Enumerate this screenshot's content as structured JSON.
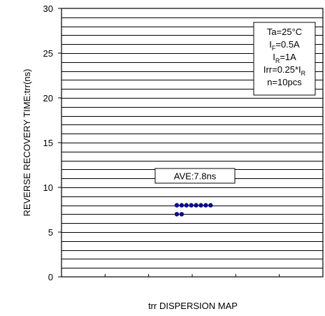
{
  "chart_data": {
    "type": "scatter",
    "title": "",
    "xlabel": "trr DISPERSION MAP",
    "ylabel": "REVERSE RECOVERY TIME:trr(ns)",
    "ylim": [
      0,
      30
    ],
    "yticks": [
      "0",
      "5",
      "10",
      "15",
      "20",
      "25",
      "30"
    ],
    "ygrid_step": 1,
    "grid": true,
    "series": [
      {
        "points": [
          {
            "x": 1,
            "y": 8
          },
          {
            "x": 2,
            "y": 8
          },
          {
            "x": 3,
            "y": 8
          },
          {
            "x": 4,
            "y": 8
          },
          {
            "x": 5,
            "y": 8
          },
          {
            "x": 6,
            "y": 8
          },
          {
            "x": 7,
            "y": 8
          },
          {
            "x": 8,
            "y": 8
          },
          {
            "x": 1,
            "y": 7
          },
          {
            "x": 2,
            "y": 7
          }
        ]
      }
    ],
    "annotations": {
      "average": "AVE:7.8ns",
      "conditions": [
        {
          "main": "Ta=25°C",
          "sub": "",
          "tail": "",
          "tail_sub": ""
        },
        {
          "main": "I",
          "sub": "F",
          "tail": "=0.5A",
          "tail_sub": ""
        },
        {
          "main": "I",
          "sub": "R",
          "tail": "=1A",
          "tail_sub": ""
        },
        {
          "main": "Irr=0.25*I",
          "sub": "",
          "tail": "",
          "tail_sub": "R"
        },
        {
          "main": "n=10pcs",
          "sub": "",
          "tail": "",
          "tail_sub": ""
        }
      ]
    },
    "colors": {
      "points": "#0a0a8a",
      "grid": "#000000"
    }
  }
}
